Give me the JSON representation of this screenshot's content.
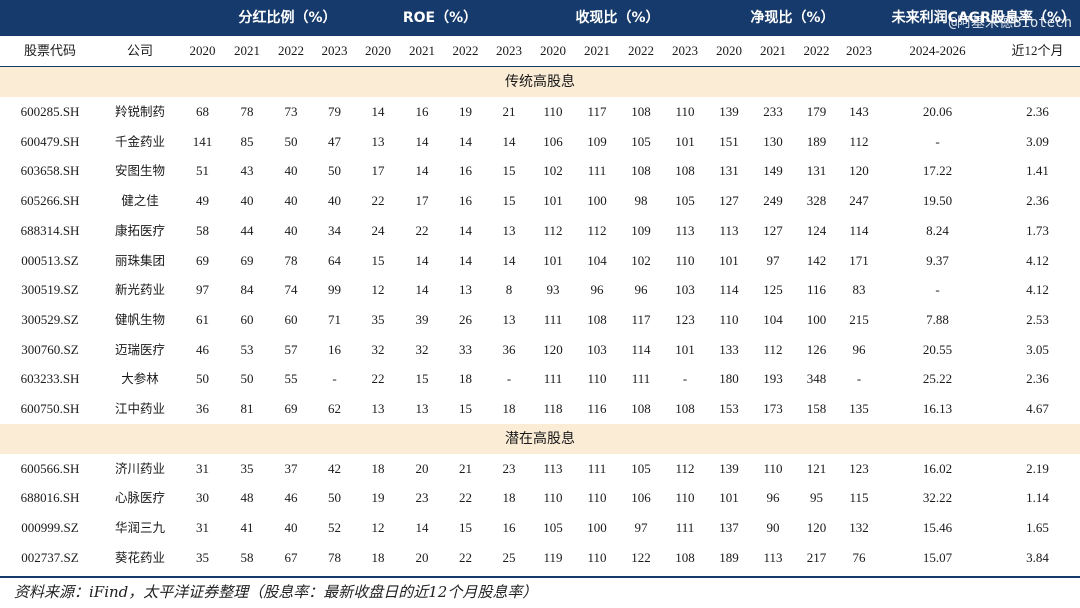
{
  "group_headers": [
    {
      "id": "payout",
      "label": "分红比例（%）"
    },
    {
      "id": "roe",
      "label": "ROE（%）"
    },
    {
      "id": "cash",
      "label": "收现比（%）"
    },
    {
      "id": "netcash",
      "label": "净现比（%）"
    },
    {
      "id": "cagr",
      "label": "未来利润CAGR股息率（%）"
    }
  ],
  "watermark": "@阿基米德Biotech",
  "columns": [
    "股票代码",
    "公司",
    "2020",
    "2021",
    "2022",
    "2023",
    "2020",
    "2021",
    "2022",
    "2023",
    "2020",
    "2021",
    "2022",
    "2023",
    "2020",
    "2021",
    "2022",
    "2023",
    "2024-2026",
    "近12个月"
  ],
  "sections": [
    {
      "title": "传统高股息",
      "rows": [
        [
          "600285.SH",
          "羚锐制药",
          "68",
          "78",
          "73",
          "79",
          "14",
          "16",
          "19",
          "21",
          "110",
          "117",
          "108",
          "110",
          "139",
          "233",
          "179",
          "143",
          "20.06",
          "2.36"
        ],
        [
          "600479.SH",
          "千金药业",
          "141",
          "85",
          "50",
          "47",
          "13",
          "14",
          "14",
          "14",
          "106",
          "109",
          "105",
          "101",
          "151",
          "130",
          "189",
          "112",
          "-",
          "3.09"
        ],
        [
          "603658.SH",
          "安图生物",
          "51",
          "43",
          "40",
          "50",
          "17",
          "14",
          "16",
          "15",
          "102",
          "111",
          "108",
          "108",
          "131",
          "149",
          "131",
          "120",
          "17.22",
          "1.41"
        ],
        [
          "605266.SH",
          "健之佳",
          "49",
          "40",
          "40",
          "40",
          "22",
          "17",
          "16",
          "15",
          "101",
          "100",
          "98",
          "105",
          "127",
          "249",
          "328",
          "247",
          "19.50",
          "2.36"
        ],
        [
          "688314.SH",
          "康拓医疗",
          "58",
          "44",
          "40",
          "34",
          "24",
          "22",
          "14",
          "13",
          "112",
          "112",
          "109",
          "113",
          "113",
          "127",
          "124",
          "114",
          "8.24",
          "1.73"
        ],
        [
          "000513.SZ",
          "丽珠集团",
          "69",
          "69",
          "78",
          "64",
          "15",
          "14",
          "14",
          "14",
          "101",
          "104",
          "102",
          "110",
          "101",
          "97",
          "142",
          "171",
          "9.37",
          "4.12"
        ],
        [
          "300519.SZ",
          "新光药业",
          "97",
          "84",
          "74",
          "99",
          "12",
          "14",
          "13",
          "8",
          "93",
          "96",
          "96",
          "103",
          "114",
          "125",
          "116",
          "83",
          "-",
          "4.12"
        ],
        [
          "300529.SZ",
          "健帆生物",
          "61",
          "60",
          "60",
          "71",
          "35",
          "39",
          "26",
          "13",
          "111",
          "108",
          "117",
          "123",
          "110",
          "104",
          "100",
          "215",
          "7.88",
          "2.53"
        ],
        [
          "300760.SZ",
          "迈瑞医疗",
          "46",
          "53",
          "57",
          "16",
          "32",
          "32",
          "33",
          "36",
          "120",
          "103",
          "114",
          "101",
          "133",
          "112",
          "126",
          "96",
          "20.55",
          "3.05"
        ],
        [
          "603233.SH",
          "大参林",
          "50",
          "50",
          "55",
          "-",
          "22",
          "15",
          "18",
          "-",
          "111",
          "110",
          "111",
          "-",
          "180",
          "193",
          "348",
          "-",
          "25.22",
          "2.36"
        ],
        [
          "600750.SH",
          "江中药业",
          "36",
          "81",
          "69",
          "62",
          "13",
          "13",
          "15",
          "18",
          "118",
          "116",
          "108",
          "108",
          "153",
          "173",
          "158",
          "135",
          "16.13",
          "4.67"
        ]
      ]
    },
    {
      "title": "潜在高股息",
      "rows": [
        [
          "600566.SH",
          "济川药业",
          "31",
          "35",
          "37",
          "42",
          "18",
          "20",
          "21",
          "23",
          "113",
          "111",
          "105",
          "112",
          "139",
          "110",
          "121",
          "123",
          "16.02",
          "2.19"
        ],
        [
          "688016.SH",
          "心脉医疗",
          "30",
          "48",
          "46",
          "50",
          "19",
          "23",
          "22",
          "18",
          "110",
          "110",
          "106",
          "110",
          "101",
          "96",
          "95",
          "115",
          "32.22",
          "1.14"
        ],
        [
          "000999.SZ",
          "华润三九",
          "31",
          "41",
          "40",
          "52",
          "12",
          "14",
          "15",
          "16",
          "105",
          "100",
          "97",
          "111",
          "137",
          "90",
          "120",
          "132",
          "15.46",
          "1.65"
        ],
        [
          "002737.SZ",
          "葵花药业",
          "35",
          "58",
          "67",
          "78",
          "18",
          "20",
          "22",
          "25",
          "119",
          "110",
          "122",
          "108",
          "189",
          "113",
          "217",
          "76",
          "15.07",
          "3.84"
        ]
      ]
    }
  ],
  "source_note": "资料来源：iFind，太平洋证券整理（股息率：最新收盘日的近12个月股息率）",
  "colors": {
    "header_bg": "#163a6b",
    "section_bg": "#fbecd6",
    "header_text": "#ffffff"
  }
}
